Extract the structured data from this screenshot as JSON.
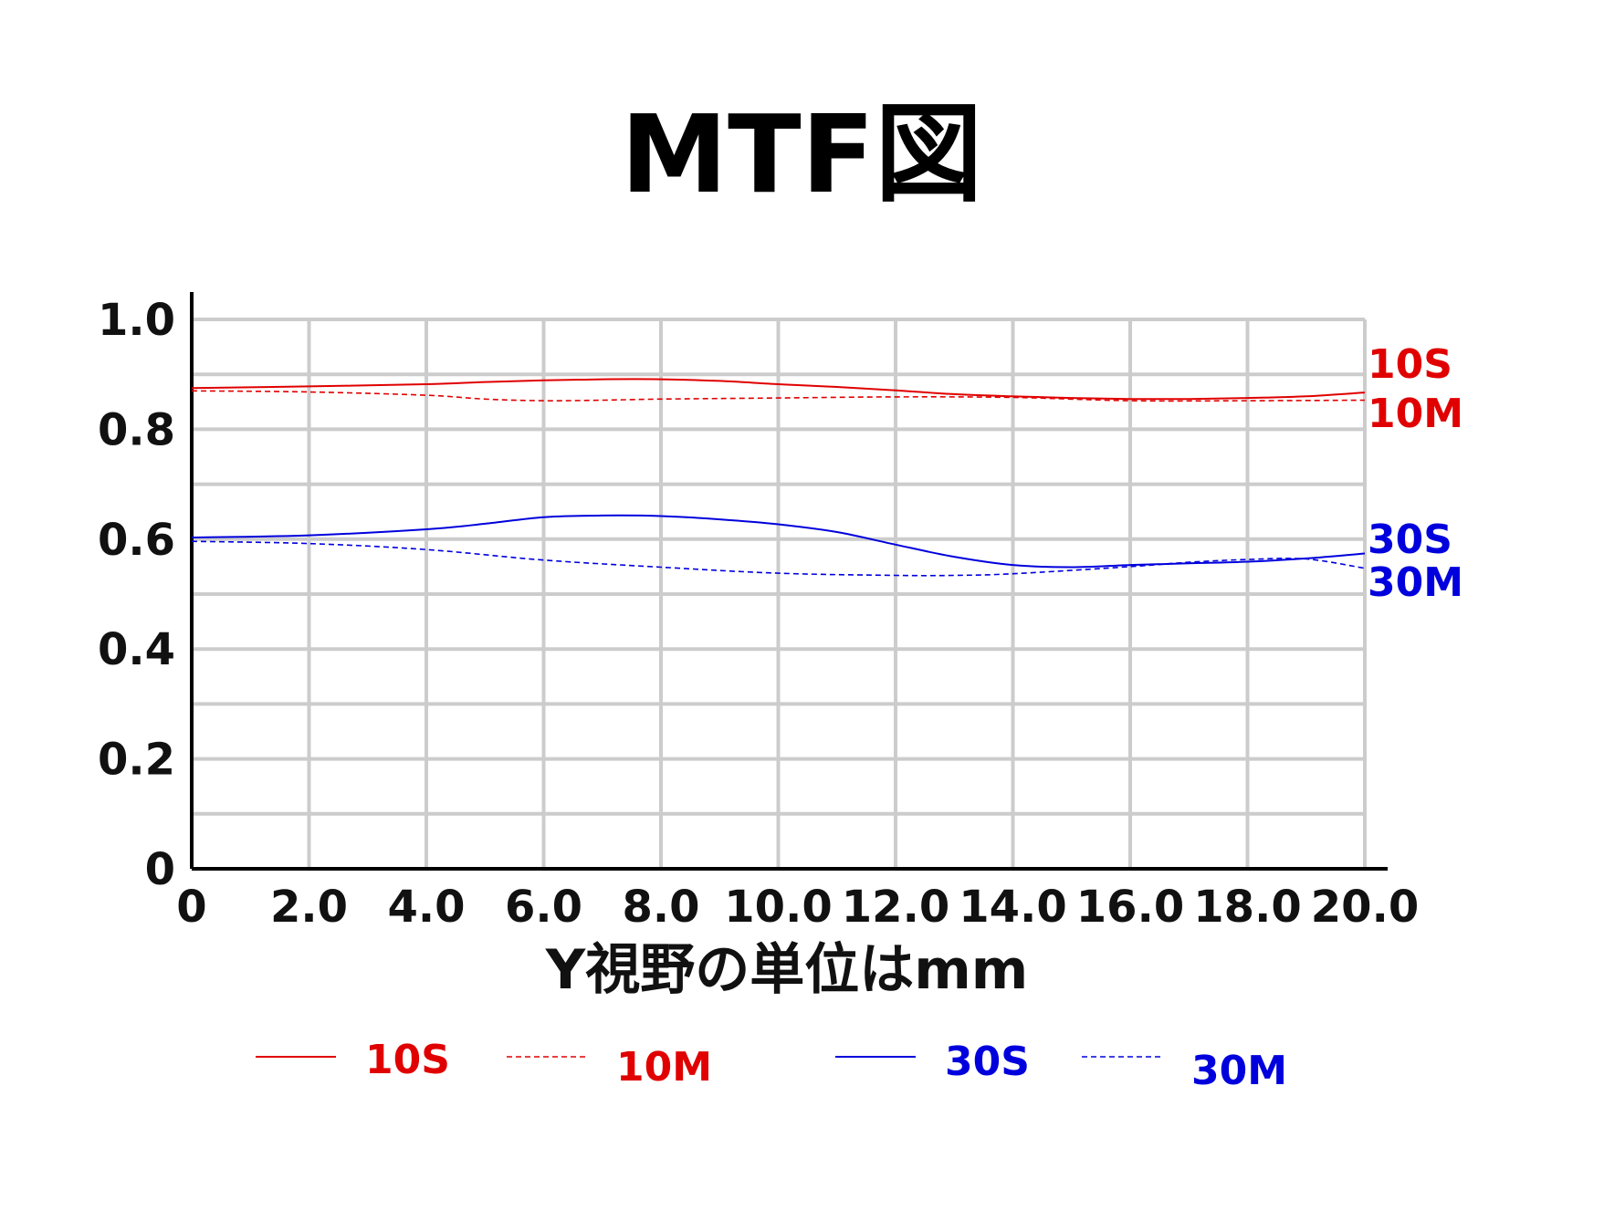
{
  "chart_data": {
    "type": "line",
    "title": "MTF図",
    "xlabel": "Y視野の単位はmm",
    "ylabel": "",
    "xlim": [
      0,
      20
    ],
    "ylim": [
      0,
      1.0
    ],
    "x_tick_labels": [
      "0",
      "2.0",
      "4.0",
      "6.0",
      "8.0",
      "10.0",
      "12.0",
      "14.0",
      "16.0",
      "18.0",
      "20.0"
    ],
    "y_tick_labels": [
      "0",
      "0.2",
      "0.4",
      "0.6",
      "0.8",
      "1.0"
    ],
    "grid": true,
    "legend_position": "bottom",
    "series": [
      {
        "name": "10S",
        "color": "#e00000",
        "style": "solid",
        "x": [
          0,
          2,
          4,
          5,
          6,
          7,
          8,
          9,
          10,
          11,
          12,
          13,
          14,
          15,
          16,
          17,
          18,
          19,
          20
        ],
        "y": [
          0.875,
          0.878,
          0.882,
          0.886,
          0.889,
          0.891,
          0.891,
          0.888,
          0.882,
          0.877,
          0.871,
          0.864,
          0.86,
          0.857,
          0.855,
          0.855,
          0.857,
          0.86,
          0.867
        ]
      },
      {
        "name": "10M",
        "color": "#e00000",
        "style": "dashed",
        "x": [
          0,
          2,
          4,
          5,
          6,
          7,
          8,
          10,
          12,
          14,
          16,
          18,
          20
        ],
        "y": [
          0.87,
          0.868,
          0.862,
          0.855,
          0.852,
          0.853,
          0.855,
          0.857,
          0.859,
          0.858,
          0.852,
          0.852,
          0.853
        ]
      },
      {
        "name": "30S",
        "color": "#0000dd",
        "style": "solid",
        "x": [
          0,
          2,
          4,
          5,
          6,
          7,
          8,
          9,
          10,
          11,
          12,
          13,
          14,
          15,
          16,
          17,
          18,
          19,
          20
        ],
        "y": [
          0.603,
          0.607,
          0.618,
          0.628,
          0.64,
          0.643,
          0.642,
          0.636,
          0.627,
          0.613,
          0.59,
          0.568,
          0.553,
          0.549,
          0.553,
          0.556,
          0.559,
          0.565,
          0.574
        ]
      },
      {
        "name": "30M",
        "color": "#0000dd",
        "style": "dashed",
        "x": [
          0,
          2,
          4,
          6,
          8,
          10,
          12,
          13,
          14,
          16,
          17,
          18,
          19,
          20
        ],
        "y": [
          0.596,
          0.592,
          0.581,
          0.562,
          0.549,
          0.538,
          0.534,
          0.534,
          0.537,
          0.55,
          0.558,
          0.563,
          0.564,
          0.547
        ]
      }
    ]
  }
}
